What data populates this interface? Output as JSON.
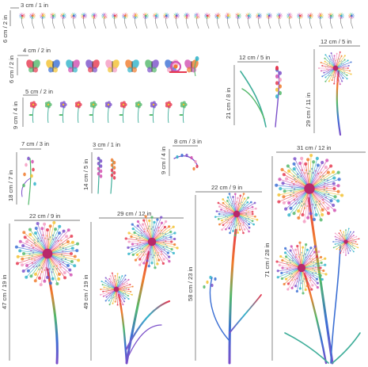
{
  "palette": [
    "#e6374f",
    "#f07a2b",
    "#f2c12e",
    "#52b86a",
    "#2fb3c9",
    "#3b6fd4",
    "#7b4fc9",
    "#d14fb0",
    "#f49ac1"
  ],
  "labels": {
    "row1_w": "3 cm / 1 in",
    "row1_h": "6 cm / 2 in",
    "row2_w": "4 cm / 2 in",
    "row2_h": "6 cm / 2 in",
    "row3_w": "5 cm / 2 in",
    "row3_h": "9 cm / 4 in",
    "lavender_w": "12 cm / 5 in",
    "lavender_h": "21 cm / 8 in",
    "dandelion_small_w": "12 cm / 5 in",
    "dandelion_small_h": "29 cm / 11 in",
    "wildflower_w": "7 cm / 3 in",
    "wildflower_h": "18 cm / 7 in",
    "lupin_w": "3 cm / 1 in",
    "lupin_h": "14 cm / 5 in",
    "sprig_w": "8 cm / 3 in",
    "sprig_h": "9 cm / 4 in",
    "big_left_w": "22 cm / 9 in",
    "big_left_h": "47 cm / 19 in",
    "double_w": "29 cm / 12 in",
    "double_h": "49 cm / 19 in",
    "tall_w": "22 cm / 9 in",
    "tall_h": "58 cm / 23 in",
    "cluster_w": "31 cm / 12 in",
    "cluster_h": "71 cm / 28 in"
  }
}
